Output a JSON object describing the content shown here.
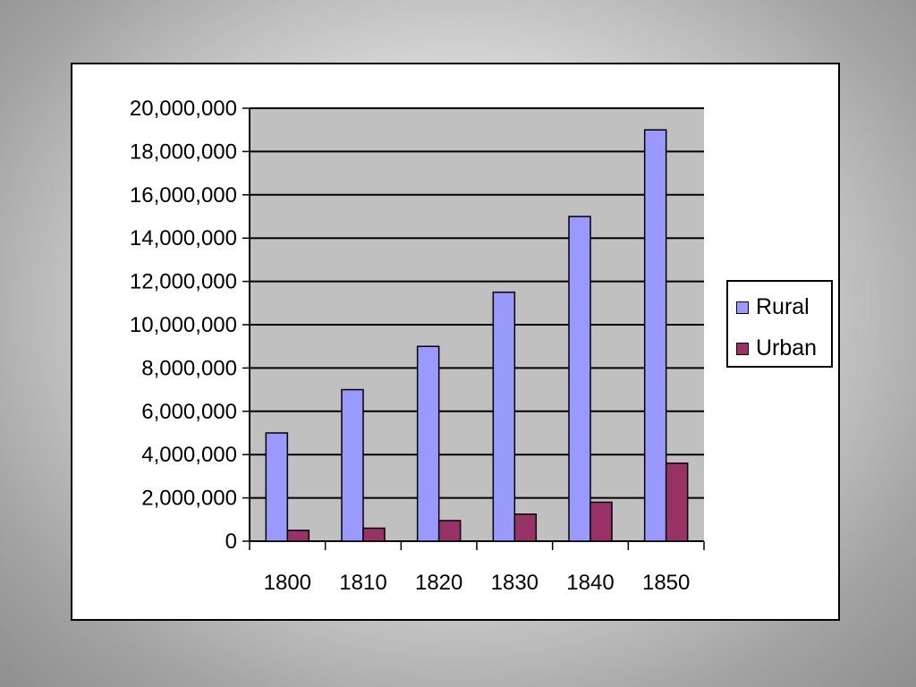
{
  "chart_data": {
    "type": "bar",
    "categories": [
      "1800",
      "1810",
      "1820",
      "1830",
      "1840",
      "1850"
    ],
    "series": [
      {
        "name": "Rural",
        "color": "#9999ff",
        "values": [
          5000000,
          7000000,
          9000000,
          11500000,
          15000000,
          19000000
        ]
      },
      {
        "name": "Urban",
        "color": "#993366",
        "values": [
          500000,
          600000,
          950000,
          1250000,
          1800000,
          3600000
        ]
      }
    ],
    "yticks": [
      "0",
      "2,000,000",
      "4,000,000",
      "6,000,000",
      "8,000,000",
      "10,000,000",
      "12,000,000",
      "14,000,000",
      "16,000,000",
      "18,000,000",
      "20,000,000"
    ],
    "ylim": [
      0,
      20000000
    ],
    "ystep": 2000000,
    "grid": true,
    "plot_background": "#c0c0c0",
    "legend_position": "right",
    "title": "",
    "xlabel": "",
    "ylabel": ""
  },
  "legend": {
    "items": [
      {
        "label": "Rural",
        "color": "#9999ff"
      },
      {
        "label": "Urban",
        "color": "#993366"
      }
    ]
  }
}
